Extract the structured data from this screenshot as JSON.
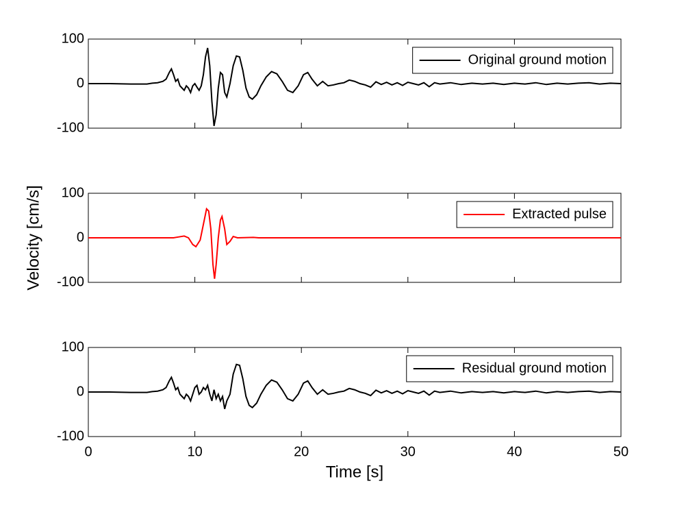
{
  "chart_data": [
    {
      "type": "line",
      "xlim": [
        0,
        50
      ],
      "xticks": [
        0,
        10,
        20,
        30,
        40,
        50
      ],
      "ylim": [
        -100,
        100
      ],
      "yticks": [
        -100,
        0,
        100
      ],
      "legend": "upper right",
      "x": [
        0,
        2,
        4,
        5.5,
        6,
        6.5,
        7,
        7.3,
        7.6,
        7.8,
        8,
        8.2,
        8.4,
        8.6,
        8.8,
        9,
        9.2,
        9.4,
        9.6,
        9.8,
        10,
        10.2,
        10.4,
        10.6,
        10.8,
        11,
        11.2,
        11.4,
        11.6,
        11.8,
        12,
        12.2,
        12.4,
        12.6,
        12.8,
        13,
        13.3,
        13.6,
        13.9,
        14.2,
        14.5,
        14.8,
        15.1,
        15.4,
        15.8,
        16.2,
        16.7,
        17.2,
        17.7,
        18.2,
        18.7,
        19.2,
        19.7,
        20.2,
        20.6,
        21,
        21.5,
        22,
        22.5,
        23,
        23.5,
        24,
        24.5,
        25,
        25.5,
        26,
        26.5,
        27,
        27.5,
        28,
        28.5,
        29,
        29.5,
        30,
        30.5,
        31,
        31.5,
        32,
        32.5,
        33,
        34,
        35,
        36,
        37,
        38,
        39,
        40,
        41,
        42,
        43,
        44,
        45,
        46,
        47,
        48,
        49,
        50
      ],
      "series": [
        {
          "name": "Original ground motion",
          "color": "#000000",
          "values": [
            0,
            0,
            -1,
            -1,
            1,
            2,
            5,
            10,
            25,
            33,
            20,
            5,
            10,
            -5,
            -10,
            -15,
            -5,
            -10,
            -20,
            -5,
            0,
            -8,
            -15,
            -5,
            20,
            60,
            80,
            40,
            -40,
            -95,
            -70,
            -10,
            25,
            20,
            -20,
            -30,
            0,
            40,
            62,
            60,
            30,
            -10,
            -30,
            -35,
            -25,
            -5,
            15,
            27,
            22,
            5,
            -15,
            -20,
            -5,
            20,
            25,
            10,
            -5,
            5,
            -5,
            -3,
            0,
            2,
            8,
            5,
            0,
            -3,
            -8,
            4,
            -2,
            3,
            -3,
            2,
            -4,
            3,
            0,
            -3,
            2,
            -7,
            2,
            -1,
            2,
            -2,
            1,
            -1,
            1,
            -2,
            1,
            -1,
            2,
            -2,
            1,
            -1,
            1,
            2,
            -1,
            1,
            0
          ]
        }
      ]
    },
    {
      "type": "line",
      "xlim": [
        0,
        50
      ],
      "xticks": [
        0,
        10,
        20,
        30,
        40,
        50
      ],
      "ylim": [
        -100,
        100
      ],
      "yticks": [
        -100,
        0,
        100
      ],
      "legend": "upper right",
      "ylabel": "Velocity [cm/s]",
      "x": [
        0,
        8,
        8.5,
        9,
        9.4,
        9.8,
        10.1,
        10.5,
        10.8,
        11.1,
        11.3,
        11.5,
        11.7,
        11.85,
        12,
        12.2,
        12.4,
        12.55,
        12.8,
        13,
        13.3,
        13.6,
        14,
        15.5,
        16,
        50
      ],
      "series": [
        {
          "name": "Extracted pulse",
          "color": "#ff0000",
          "values": [
            0,
            0,
            2,
            4,
            0,
            -15,
            -20,
            -5,
            30,
            65,
            60,
            20,
            -60,
            -92,
            -60,
            0,
            40,
            48,
            20,
            -15,
            -8,
            3,
            0,
            1,
            0,
            0
          ]
        }
      ]
    },
    {
      "type": "line",
      "xlim": [
        0,
        50
      ],
      "xticks": [
        0,
        10,
        20,
        30,
        40,
        50
      ],
      "ylim": [
        -100,
        100
      ],
      "yticks": [
        -100,
        0,
        100
      ],
      "legend": "upper right",
      "xlabel": "Time [s]",
      "x": [
        0,
        2,
        4,
        5.5,
        6,
        6.5,
        7,
        7.3,
        7.6,
        7.8,
        8,
        8.2,
        8.4,
        8.6,
        8.8,
        9,
        9.2,
        9.4,
        9.6,
        9.8,
        10,
        10.2,
        10.4,
        10.6,
        10.8,
        11,
        11.2,
        11.4,
        11.6,
        11.8,
        12,
        12.2,
        12.4,
        12.6,
        12.8,
        13,
        13.3,
        13.6,
        13.9,
        14.2,
        14.5,
        14.8,
        15.1,
        15.4,
        15.8,
        16.2,
        16.7,
        17.2,
        17.7,
        18.2,
        18.7,
        19.2,
        19.7,
        20.2,
        20.6,
        21,
        21.5,
        22,
        22.5,
        23,
        23.5,
        24,
        24.5,
        25,
        25.5,
        26,
        26.5,
        27,
        27.5,
        28,
        28.5,
        29,
        29.5,
        30,
        30.5,
        31,
        31.5,
        32,
        32.5,
        33,
        34,
        35,
        36,
        37,
        38,
        39,
        40,
        41,
        42,
        43,
        44,
        45,
        46,
        47,
        48,
        49,
        50
      ],
      "series": [
        {
          "name": "Residual ground motion",
          "color": "#000000",
          "values": [
            0,
            0,
            -1,
            -1,
            1,
            2,
            5,
            10,
            25,
            33,
            20,
            5,
            10,
            -5,
            -10,
            -15,
            -5,
            -10,
            -20,
            -5,
            10,
            15,
            -5,
            0,
            10,
            5,
            15,
            -5,
            -20,
            5,
            -15,
            -5,
            -20,
            -10,
            -38,
            -20,
            -5,
            40,
            62,
            60,
            30,
            -10,
            -30,
            -35,
            -25,
            -5,
            15,
            27,
            22,
            5,
            -15,
            -20,
            -5,
            20,
            25,
            10,
            -5,
            5,
            -5,
            -3,
            0,
            2,
            8,
            5,
            0,
            -3,
            -8,
            4,
            -2,
            3,
            -3,
            2,
            -4,
            3,
            0,
            -3,
            2,
            -7,
            2,
            -1,
            2,
            -2,
            1,
            -1,
            1,
            -2,
            1,
            -1,
            2,
            -2,
            1,
            -1,
            1,
            2,
            -1,
            1,
            0
          ]
        }
      ]
    }
  ]
}
